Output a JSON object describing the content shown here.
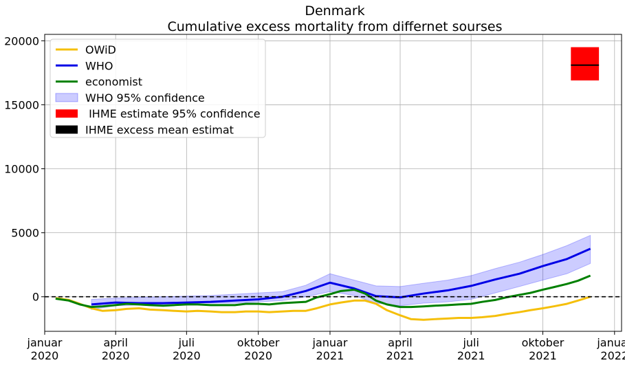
{
  "chart_data": {
    "type": "line",
    "title": "Denmark",
    "subtitle": "Cumulative excess mortality from differnet sourses",
    "xlabel": "",
    "ylabel": "",
    "xlim": [
      "2020-01-01",
      "2022-01-10"
    ],
    "ylim": [
      -2700,
      20500
    ],
    "grid": true,
    "legend_position": "top-left",
    "zero_reference_line": {
      "y": 0,
      "style": "dashed",
      "color": "#000000"
    },
    "y_ticks": [
      {
        "value": 0,
        "label": "0"
      },
      {
        "value": 5000,
        "label": "5000"
      },
      {
        "value": 10000,
        "label": "10000"
      },
      {
        "value": 15000,
        "label": "15000"
      },
      {
        "value": 20000,
        "label": "20000"
      }
    ],
    "x_ticks": [
      {
        "date": "2020-01-01",
        "line1": "januar",
        "line2": "2020"
      },
      {
        "date": "2020-04-01",
        "line1": "april",
        "line2": "2020"
      },
      {
        "date": "2020-07-01",
        "line1": "juli",
        "line2": "2020"
      },
      {
        "date": "2020-10-01",
        "line1": "oktober",
        "line2": "2020"
      },
      {
        "date": "2021-01-01",
        "line1": "januar",
        "line2": "2021"
      },
      {
        "date": "2021-04-01",
        "line1": "april",
        "line2": "2021"
      },
      {
        "date": "2021-07-01",
        "line1": "juli",
        "line2": "2021"
      },
      {
        "date": "2021-10-01",
        "line1": "oktober",
        "line2": "2021"
      },
      {
        "date": "2022-01-01",
        "line1": "januar",
        "line2": "2022"
      }
    ],
    "series": [
      {
        "name": "OWiD",
        "color": "#f5bf0a",
        "x": [
          "2020-01-15",
          "2020-02-01",
          "2020-02-15",
          "2020-03-01",
          "2020-03-15",
          "2020-04-01",
          "2020-04-15",
          "2020-05-01",
          "2020-05-15",
          "2020-06-01",
          "2020-06-15",
          "2020-07-01",
          "2020-07-15",
          "2020-08-01",
          "2020-08-15",
          "2020-09-01",
          "2020-09-15",
          "2020-10-01",
          "2020-10-15",
          "2020-11-01",
          "2020-11-15",
          "2020-12-01",
          "2020-12-15",
          "2021-01-01",
          "2021-01-15",
          "2021-02-01",
          "2021-02-15",
          "2021-03-01",
          "2021-03-15",
          "2021-04-01",
          "2021-04-15",
          "2021-05-01",
          "2021-05-15",
          "2021-06-01",
          "2021-06-15",
          "2021-07-01",
          "2021-07-15",
          "2021-08-01",
          "2021-08-15",
          "2021-09-01",
          "2021-09-15",
          "2021-10-01",
          "2021-10-15",
          "2021-11-01",
          "2021-11-15",
          "2021-12-01"
        ],
        "values": [
          -100,
          -250,
          -550,
          -900,
          -1100,
          -1050,
          -950,
          -900,
          -1000,
          -1050,
          -1100,
          -1150,
          -1100,
          -1150,
          -1200,
          -1200,
          -1150,
          -1150,
          -1200,
          -1150,
          -1100,
          -1100,
          -900,
          -600,
          -450,
          -300,
          -300,
          -550,
          -1050,
          -1450,
          -1750,
          -1800,
          -1750,
          -1700,
          -1650,
          -1650,
          -1600,
          -1500,
          -1350,
          -1200,
          -1050,
          -900,
          -750,
          -550,
          -300,
          0
        ]
      },
      {
        "name": "WHO",
        "color": "#0000e6",
        "x": [
          "2020-03-01",
          "2020-04-01",
          "2020-05-01",
          "2020-06-01",
          "2020-07-01",
          "2020-08-01",
          "2020-09-01",
          "2020-10-01",
          "2020-11-01",
          "2020-12-01",
          "2021-01-01",
          "2021-02-01",
          "2021-03-01",
          "2021-04-01",
          "2021-05-01",
          "2021-06-01",
          "2021-07-01",
          "2021-08-01",
          "2021-09-01",
          "2021-10-01",
          "2021-11-01",
          "2021-12-01"
        ],
        "values": [
          -600,
          -450,
          -500,
          -500,
          -450,
          -400,
          -300,
          -200,
          0,
          450,
          1100,
          650,
          50,
          -50,
          250,
          500,
          850,
          1350,
          1800,
          2400,
          2950,
          3750
        ]
      },
      {
        "name": "economist",
        "color": "#008000",
        "x": [
          "2020-01-15",
          "2020-02-01",
          "2020-02-15",
          "2020-03-01",
          "2020-03-15",
          "2020-04-01",
          "2020-04-15",
          "2020-05-01",
          "2020-05-15",
          "2020-06-01",
          "2020-06-15",
          "2020-07-01",
          "2020-07-15",
          "2020-08-01",
          "2020-08-15",
          "2020-09-01",
          "2020-09-15",
          "2020-10-01",
          "2020-10-15",
          "2020-11-01",
          "2020-11-15",
          "2020-12-01",
          "2020-12-15",
          "2021-01-01",
          "2021-01-15",
          "2021-02-01",
          "2021-02-15",
          "2021-03-01",
          "2021-03-15",
          "2021-04-01",
          "2021-04-15",
          "2021-05-01",
          "2021-05-15",
          "2021-06-01",
          "2021-06-15",
          "2021-07-01",
          "2021-07-15",
          "2021-08-01",
          "2021-08-15",
          "2021-09-01",
          "2021-09-15",
          "2021-10-01",
          "2021-10-15",
          "2021-11-01",
          "2021-11-15",
          "2021-12-01"
        ],
        "values": [
          -150,
          -300,
          -600,
          -800,
          -750,
          -650,
          -550,
          -600,
          -650,
          -700,
          -650,
          -600,
          -600,
          -650,
          -650,
          -650,
          -550,
          -550,
          -600,
          -500,
          -450,
          -400,
          -50,
          200,
          450,
          550,
          250,
          -300,
          -600,
          -800,
          -800,
          -750,
          -700,
          -650,
          -600,
          -550,
          -400,
          -250,
          -50,
          150,
          300,
          550,
          750,
          1000,
          1250,
          1650
        ]
      }
    ],
    "bands": [
      {
        "name": "WHO 95% confidence",
        "color": "#0000ff",
        "opacity": 0.2,
        "x": [
          "2020-03-01",
          "2020-04-01",
          "2020-05-01",
          "2020-06-01",
          "2020-07-01",
          "2020-08-01",
          "2020-09-01",
          "2020-10-01",
          "2020-11-01",
          "2020-12-01",
          "2021-01-01",
          "2021-02-01",
          "2021-03-01",
          "2021-04-01",
          "2021-05-01",
          "2021-06-01",
          "2021-07-01",
          "2021-08-01",
          "2021-09-01",
          "2021-10-01",
          "2021-11-01",
          "2021-12-01"
        ],
        "lower": [
          -1000,
          -700,
          -650,
          -600,
          -500,
          -500,
          -500,
          -400,
          -300,
          0,
          400,
          100,
          -500,
          -700,
          -500,
          -400,
          -200,
          300,
          800,
          1300,
          1800,
          2600
        ],
        "upper": [
          -200,
          -100,
          -50,
          0,
          50,
          100,
          200,
          300,
          400,
          900,
          1800,
          1300,
          850,
          800,
          1050,
          1300,
          1650,
          2200,
          2700,
          3300,
          4000,
          4800
        ]
      }
    ],
    "ihme": {
      "estimate_label": " IHME estimate 95% confidence",
      "estimate_color": "#ff0000",
      "mean_label": "IHME excess mean estimat",
      "mean_color": "#000000",
      "x_start": "2021-11-06",
      "x_end": "2021-12-12",
      "lower": 16900,
      "upper": 19500,
      "mean": 18100
    }
  }
}
